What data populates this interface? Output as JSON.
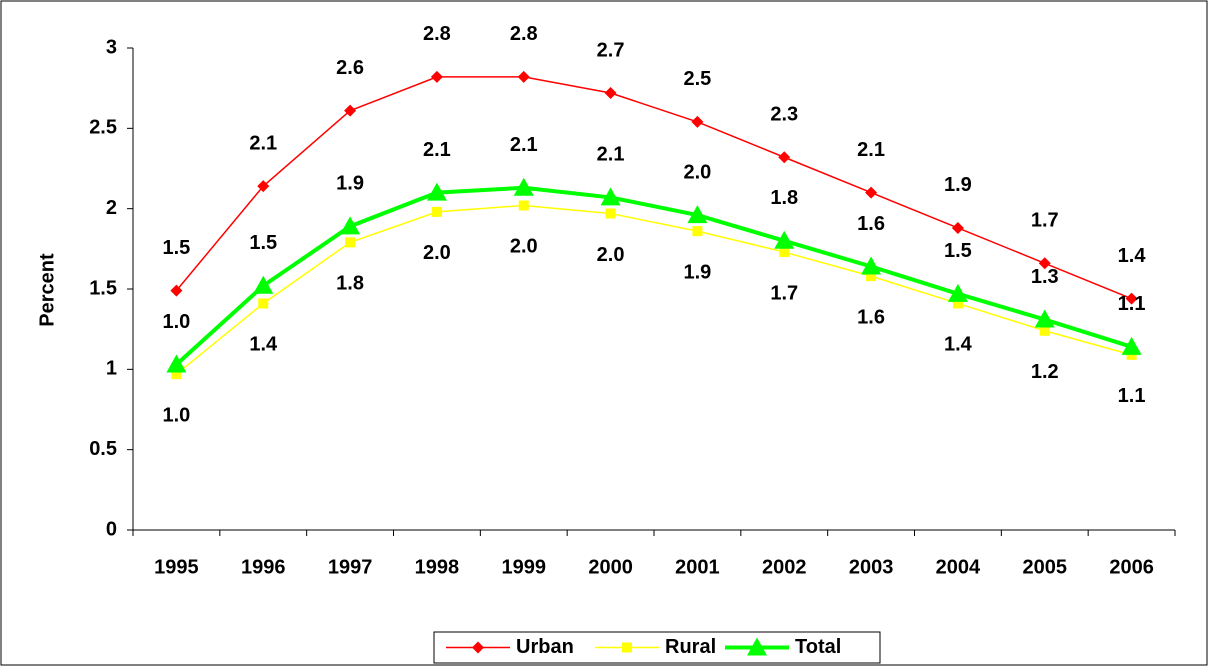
{
  "chart_data": {
    "type": "line",
    "y_label": "Percent",
    "categories": [
      "1995",
      "1996",
      "1997",
      "1998",
      "1999",
      "2000",
      "2001",
      "2002",
      "2003",
      "2004",
      "2005",
      "2006"
    ],
    "series": [
      {
        "name": "Urban",
        "color": "#ff0000",
        "marker": "diamond",
        "label_position": "above",
        "values": [
          1.49,
          2.14,
          2.61,
          2.82,
          2.82,
          2.72,
          2.54,
          2.32,
          2.1,
          1.88,
          1.66,
          1.44
        ],
        "value_labels": [
          "1.5",
          "2.1",
          "2.6",
          "2.8",
          "2.8",
          "2.7",
          "2.5",
          "2.3",
          "2.1",
          "1.9",
          "1.7",
          "1.4"
        ]
      },
      {
        "name": "Rural",
        "color": "#ffff00",
        "marker": "square",
        "label_position": "below",
        "values": [
          0.97,
          1.41,
          1.79,
          1.98,
          2.02,
          1.97,
          1.86,
          1.73,
          1.58,
          1.41,
          1.24,
          1.09
        ],
        "value_labels": [
          "1.0",
          "1.4",
          "1.8",
          "2.0",
          "2.0",
          "2.0",
          "1.9",
          "1.7",
          "1.6",
          "1.4",
          "1.2",
          "1.1"
        ]
      },
      {
        "name": "Total",
        "color": "#00ff00",
        "marker": "triangle",
        "label_position": "above",
        "values": [
          1.03,
          1.52,
          1.89,
          2.1,
          2.13,
          2.07,
          1.96,
          1.8,
          1.64,
          1.47,
          1.31,
          1.14
        ],
        "value_labels": [
          "1.0",
          "1.5",
          "1.9",
          "2.1",
          "2.1",
          "2.1",
          "2.0",
          "1.8",
          "1.6",
          "1.5",
          "1.3",
          "1.1"
        ]
      }
    ],
    "ylim": [
      0,
      3
    ],
    "yticks": [
      0,
      0.5,
      1,
      1.5,
      2,
      2.5,
      3
    ],
    "grid": false,
    "legend": "bottom"
  }
}
